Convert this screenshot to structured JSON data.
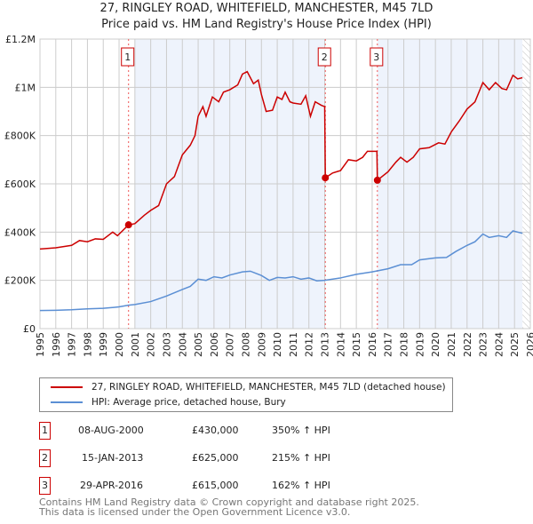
{
  "title": "27, RINGLEY ROAD, WHITEFIELD, MANCHESTER, M45 7LD",
  "subtitle": "Price paid vs. HM Land Registry's House Price Index (HPI)",
  "colors": {
    "property": "#cc0000",
    "hpi": "#5b8fd4",
    "shade": "#eef3fc"
  },
  "chart_data": {
    "type": "line",
    "xlim": [
      1995,
      2026
    ],
    "ylim": [
      0,
      1200000
    ],
    "x_ticks": [
      "1995",
      "1996",
      "1997",
      "1998",
      "1999",
      "2000",
      "2001",
      "2002",
      "2003",
      "2004",
      "2005",
      "2006",
      "2007",
      "2008",
      "2009",
      "2010",
      "2011",
      "2012",
      "2013",
      "2014",
      "2015",
      "2016",
      "2017",
      "2018",
      "2019",
      "2020",
      "2021",
      "2022",
      "2023",
      "2024",
      "2025",
      "2026"
    ],
    "y_ticks": [
      {
        "v": 0,
        "label": "£0"
      },
      {
        "v": 200000,
        "label": "£200K"
      },
      {
        "v": 400000,
        "label": "£400K"
      },
      {
        "v": 600000,
        "label": "£600K"
      },
      {
        "v": 800000,
        "label": "£800K"
      },
      {
        "v": 1000000,
        "label": "£1M"
      },
      {
        "v": 1200000,
        "label": "£1.2M"
      }
    ],
    "series": [
      {
        "name": "27, RINGLEY ROAD, WHITEFIELD, MANCHESTER, M45 7LD (detached house)",
        "color": "#cc0000",
        "points": [
          [
            1995,
            330
          ],
          [
            1996,
            335
          ],
          [
            1997,
            345
          ],
          [
            1997.5,
            365
          ],
          [
            1998,
            360
          ],
          [
            1998.5,
            372
          ],
          [
            1999,
            370
          ],
          [
            1999.6,
            400
          ],
          [
            1999.9,
            385
          ],
          [
            2000.6,
            430
          ],
          [
            2001,
            435
          ],
          [
            2001.6,
            470
          ],
          [
            2002,
            490
          ],
          [
            2002.5,
            510
          ],
          [
            2003,
            600
          ],
          [
            2003.5,
            630
          ],
          [
            2004,
            720
          ],
          [
            2004.5,
            760
          ],
          [
            2004.8,
            800
          ],
          [
            2005,
            880
          ],
          [
            2005.3,
            920
          ],
          [
            2005.5,
            880
          ],
          [
            2005.9,
            960
          ],
          [
            2006.3,
            940
          ],
          [
            2006.6,
            980
          ],
          [
            2007,
            990
          ],
          [
            2007.5,
            1010
          ],
          [
            2007.8,
            1055
          ],
          [
            2008.1,
            1065
          ],
          [
            2008.5,
            1015
          ],
          [
            2008.8,
            1030
          ],
          [
            2009,
            970
          ],
          [
            2009.3,
            900
          ],
          [
            2009.7,
            905
          ],
          [
            2010,
            960
          ],
          [
            2010.3,
            950
          ],
          [
            2010.5,
            980
          ],
          [
            2010.8,
            940
          ],
          [
            2011,
            935
          ],
          [
            2011.5,
            930
          ],
          [
            2011.8,
            965
          ],
          [
            2012.1,
            880
          ],
          [
            2012.4,
            940
          ],
          [
            2012.8,
            925
          ],
          [
            2013.0,
            920
          ],
          [
            2013.04,
            625
          ],
          [
            2013.5,
            645
          ],
          [
            2014,
            655
          ],
          [
            2014.5,
            700
          ],
          [
            2015,
            695
          ],
          [
            2015.4,
            710
          ],
          [
            2015.7,
            735
          ],
          [
            2016.3,
            735
          ],
          [
            2016.33,
            615
          ],
          [
            2017,
            650
          ],
          [
            2017.5,
            690
          ],
          [
            2017.8,
            710
          ],
          [
            2018.2,
            690
          ],
          [
            2018.6,
            710
          ],
          [
            2019,
            745
          ],
          [
            2019.6,
            750
          ],
          [
            2020.2,
            770
          ],
          [
            2020.6,
            765
          ],
          [
            2021,
            815
          ],
          [
            2021.5,
            860
          ],
          [
            2022,
            910
          ],
          [
            2022.5,
            940
          ],
          [
            2023,
            1020
          ],
          [
            2023.4,
            990
          ],
          [
            2023.8,
            1020
          ],
          [
            2024.2,
            995
          ],
          [
            2024.5,
            990
          ],
          [
            2024.9,
            1050
          ],
          [
            2025.2,
            1035
          ],
          [
            2025.5,
            1040
          ]
        ]
      },
      {
        "name": "HPI: Average price, detached house, Bury",
        "color": "#5b8fd4",
        "points": [
          [
            1995,
            75
          ],
          [
            1996,
            76
          ],
          [
            1997,
            78
          ],
          [
            1998,
            82
          ],
          [
            1999,
            84
          ],
          [
            2000,
            90
          ],
          [
            2000.6,
            97
          ],
          [
            2001,
            100
          ],
          [
            2002,
            112
          ],
          [
            2003,
            135
          ],
          [
            2004,
            162
          ],
          [
            2004.5,
            175
          ],
          [
            2005,
            205
          ],
          [
            2005.5,
            200
          ],
          [
            2006,
            215
          ],
          [
            2006.5,
            210
          ],
          [
            2007,
            222
          ],
          [
            2007.8,
            235
          ],
          [
            2008.3,
            238
          ],
          [
            2009,
            220
          ],
          [
            2009.5,
            200
          ],
          [
            2010,
            212
          ],
          [
            2010.5,
            210
          ],
          [
            2011,
            215
          ],
          [
            2011.5,
            205
          ],
          [
            2012,
            210
          ],
          [
            2012.5,
            198
          ],
          [
            2013,
            200
          ],
          [
            2014,
            210
          ],
          [
            2015,
            225
          ],
          [
            2016,
            235
          ],
          [
            2017,
            248
          ],
          [
            2017.8,
            265
          ],
          [
            2018.5,
            265
          ],
          [
            2019,
            285
          ],
          [
            2020,
            293
          ],
          [
            2020.7,
            295
          ],
          [
            2021.3,
            320
          ],
          [
            2022,
            345
          ],
          [
            2022.5,
            360
          ],
          [
            2023,
            392
          ],
          [
            2023.4,
            378
          ],
          [
            2024,
            385
          ],
          [
            2024.5,
            378
          ],
          [
            2024.9,
            405
          ],
          [
            2025.5,
            395
          ]
        ]
      }
    ],
    "shaded_ranges": [
      [
        2001,
        2013.04
      ],
      [
        2016.33,
        2025.5
      ]
    ],
    "hatched_from": 2025.5,
    "sales": [
      {
        "id": "1",
        "x": 2000.6,
        "y": 430
      },
      {
        "id": "2",
        "x": 2013.04,
        "y": 625
      },
      {
        "id": "3",
        "x": 2016.33,
        "y": 615
      }
    ]
  },
  "legend": {
    "property": "27, RINGLEY ROAD, WHITEFIELD, MANCHESTER, M45 7LD (detached house)",
    "hpi": "HPI: Average price, detached house, Bury"
  },
  "sales_table": [
    {
      "id": "1",
      "date": "08-AUG-2000",
      "price": "£430,000",
      "hpi": "350% ↑ HPI"
    },
    {
      "id": "2",
      "date": "15-JAN-2013",
      "price": "£625,000",
      "hpi": "215% ↑ HPI"
    },
    {
      "id": "3",
      "date": "29-APR-2016",
      "price": "£615,000",
      "hpi": "162% ↑ HPI"
    }
  ],
  "footer": [
    "Contains HM Land Registry data © Crown copyright and database right 2025.",
    "This data is licensed under the Open Government Licence v3.0."
  ]
}
